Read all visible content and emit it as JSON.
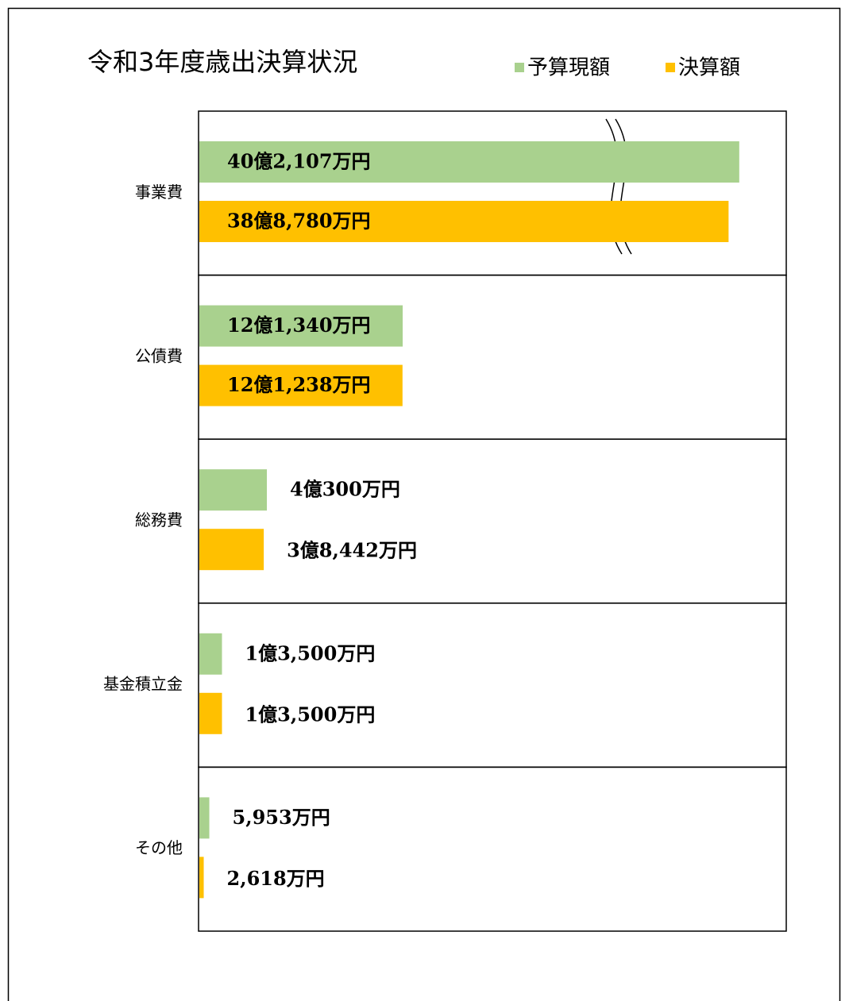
{
  "chart_data": {
    "type": "bar",
    "orientation": "horizontal",
    "title": "令和3年度歳出決算状況",
    "categories": [
      "事業費",
      "公債費",
      "総務費",
      "基金積立金",
      "その他"
    ],
    "series": [
      {
        "name": "予算現額",
        "color": "#a9d18e",
        "values": [
          402107,
          121340,
          40300,
          13500,
          5953
        ],
        "value_labels": [
          "40億2,107万円",
          "12億1,340万円",
          "4億300万円",
          "1億3,500万円",
          "5,953万円"
        ]
      },
      {
        "name": "決算額",
        "color": "#ffc000",
        "values": [
          388780,
          121238,
          38442,
          13500,
          2618
        ],
        "value_labels": [
          "38億8,780万円",
          "12億1,238万円",
          "3億8,442万円",
          "1億3,500万円",
          "2,618万円"
        ]
      }
    ],
    "axis_break": true
  }
}
